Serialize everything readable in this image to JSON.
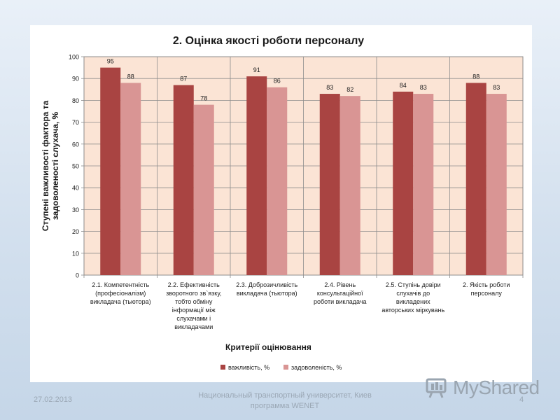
{
  "chart_data": {
    "type": "bar",
    "title": "2. Оцінка якості роботи персоналу",
    "xlabel": "Критерії оцінювання",
    "ylabel": [
      "Ступені важливості фактора та",
      "задоволеності слухача, %"
    ],
    "ylim": [
      0,
      100
    ],
    "yticks": [
      0,
      10,
      20,
      30,
      40,
      50,
      60,
      70,
      80,
      90,
      100
    ],
    "grid": true,
    "legend_position": "bottom",
    "categories": [
      [
        "2.1. Компетентність",
        "(професіоналізм)",
        "викладача (тьютора)"
      ],
      [
        "2.2. Ефективність",
        "зворотного зв`язку,",
        "тобто обміну",
        "інформації між",
        "слухачами і",
        "викладачами"
      ],
      [
        "2.3. Доброзичливість",
        "викладача (тьютора)"
      ],
      [
        "2.4. Рівень",
        "консультаційної",
        "роботи викладача"
      ],
      [
        "2.5. Ступінь довіри",
        "слухачів до",
        "викладених",
        "авторських міркувань"
      ],
      [
        "2. Якість роботи",
        "персоналу"
      ]
    ],
    "series": [
      {
        "name": "важливість, %",
        "color": "#a94442",
        "values": [
          95,
          87,
          91,
          83,
          84,
          88
        ]
      },
      {
        "name": "задоволеність, %",
        "color": "#d99594",
        "values": [
          88,
          78,
          86,
          82,
          83,
          83
        ]
      }
    ]
  },
  "footer": {
    "date": "27.02.2013",
    "center_line1": "Национальный транспортный университет, Киев",
    "center_line2": "программа WENET",
    "page": "4"
  },
  "logo": {
    "text": "MyShared"
  }
}
